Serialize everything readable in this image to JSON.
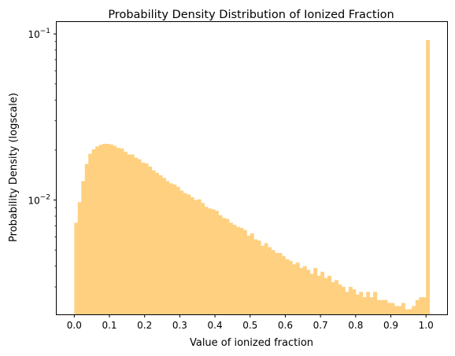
{
  "chart_data": {
    "type": "bar",
    "title": "Probability Density Distribution of Ionized Fraction",
    "xlabel": "Value of ionized fraction",
    "ylabel": "Probability Density (logscale)",
    "y_scale": "log",
    "xlim": [
      -0.05,
      1.06
    ],
    "ylim": [
      0.00205,
      0.118
    ],
    "x_ticks": [
      {
        "value": 0.0,
        "label": "0.0"
      },
      {
        "value": 0.1,
        "label": "0.1"
      },
      {
        "value": 0.2,
        "label": "0.2"
      },
      {
        "value": 0.3,
        "label": "0.3"
      },
      {
        "value": 0.4,
        "label": "0.4"
      },
      {
        "value": 0.5,
        "label": "0.5"
      },
      {
        "value": 0.6,
        "label": "0.6"
      },
      {
        "value": 0.7,
        "label": "0.7"
      },
      {
        "value": 0.8,
        "label": "0.8"
      },
      {
        "value": 0.9,
        "label": "0.9"
      },
      {
        "value": 1.0,
        "label": "1.0"
      }
    ],
    "y_major_ticks": [
      {
        "value": 0.01,
        "base": "10",
        "exp": "−2"
      },
      {
        "value": 0.1,
        "base": "10",
        "exp": "−1"
      }
    ],
    "y_minor_ticks": [
      0.003,
      0.004,
      0.005,
      0.006,
      0.007,
      0.008,
      0.009,
      0.02,
      0.03,
      0.04,
      0.05,
      0.06,
      0.07,
      0.08,
      0.09
    ],
    "grid": false,
    "bar_color": "#ffd080",
    "bin_start": 0.0,
    "bin_width": 0.01,
    "values": [
      0.0073,
      0.0097,
      0.013,
      0.0165,
      0.019,
      0.0202,
      0.021,
      0.0215,
      0.0218,
      0.0218,
      0.0216,
      0.0212,
      0.0206,
      0.0204,
      0.0195,
      0.0188,
      0.0188,
      0.018,
      0.0176,
      0.0168,
      0.0166,
      0.0159,
      0.0151,
      0.0146,
      0.0141,
      0.0136,
      0.013,
      0.0126,
      0.0124,
      0.012,
      0.0114,
      0.011,
      0.0108,
      0.0104,
      0.01,
      0.0101,
      0.0096,
      0.0091,
      0.0089,
      0.0088,
      0.0086,
      0.0081,
      0.0078,
      0.0077,
      0.0073,
      0.0071,
      0.0069,
      0.0068,
      0.0066,
      0.0061,
      0.0063,
      0.0058,
      0.0057,
      0.0053,
      0.0055,
      0.0052,
      0.005,
      0.0048,
      0.0048,
      0.0046,
      0.0044,
      0.0043,
      0.0041,
      0.0042,
      0.0039,
      0.004,
      0.0038,
      0.0036,
      0.0039,
      0.0035,
      0.0037,
      0.0034,
      0.0035,
      0.0032,
      0.0033,
      0.0031,
      0.003,
      0.0028,
      0.003,
      0.0029,
      0.0027,
      0.0028,
      0.0026,
      0.0028,
      0.0026,
      0.0028,
      0.0025,
      0.0025,
      0.0025,
      0.0024,
      0.0024,
      0.0023,
      0.0023,
      0.0024,
      0.0022,
      0.0022,
      0.0023,
      0.0025,
      0.0026,
      0.0026,
      0.092
    ]
  }
}
